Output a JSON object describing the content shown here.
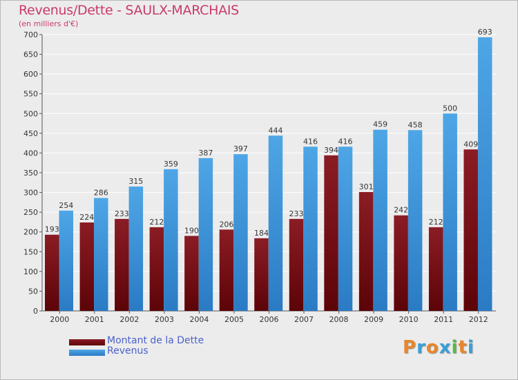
{
  "title": "Revenus/Dette - SAULX-MARCHAIS",
  "subtitle": "(en milliers d'€)",
  "logo": {
    "text": "Proxiti",
    "letters": [
      "P",
      "r",
      "o",
      "x",
      "i",
      "t",
      "i"
    ],
    "colors": [
      "#e8862c",
      "#3aa0d8",
      "#e8862c",
      "#3aa0d8",
      "#58b848",
      "#e8862c",
      "#3aa0d8"
    ]
  },
  "colors": {
    "dette": "#8b1c24",
    "dette_dark": "#5c0408",
    "revenus": "#4ea6e6",
    "revenus_dark": "#2a7bc4",
    "grid": "#ffffff",
    "background": "#ececec"
  },
  "chart_data": {
    "type": "bar",
    "title": "Revenus/Dette - SAULX-MARCHAIS",
    "ylabel": "(en milliers d'€)",
    "ylim": [
      0,
      700
    ],
    "yticks": [
      0,
      50,
      100,
      150,
      200,
      250,
      300,
      350,
      400,
      450,
      500,
      550,
      600,
      650,
      700
    ],
    "grid": true,
    "legend_position": "bottom-left",
    "categories": [
      "2000",
      "2001",
      "2002",
      "2003",
      "2004",
      "2005",
      "2006",
      "2007",
      "2008",
      "2009",
      "2010",
      "2011",
      "2012"
    ],
    "series": [
      {
        "name": "Montant de la Dette",
        "values": [
          193,
          224,
          233,
          212,
          190,
          206,
          184,
          233,
          394,
          301,
          242,
          212,
          409
        ]
      },
      {
        "name": "Revenus",
        "values": [
          254,
          286,
          315,
          359,
          387,
          397,
          444,
          416,
          416,
          459,
          458,
          500,
          693
        ]
      }
    ]
  }
}
